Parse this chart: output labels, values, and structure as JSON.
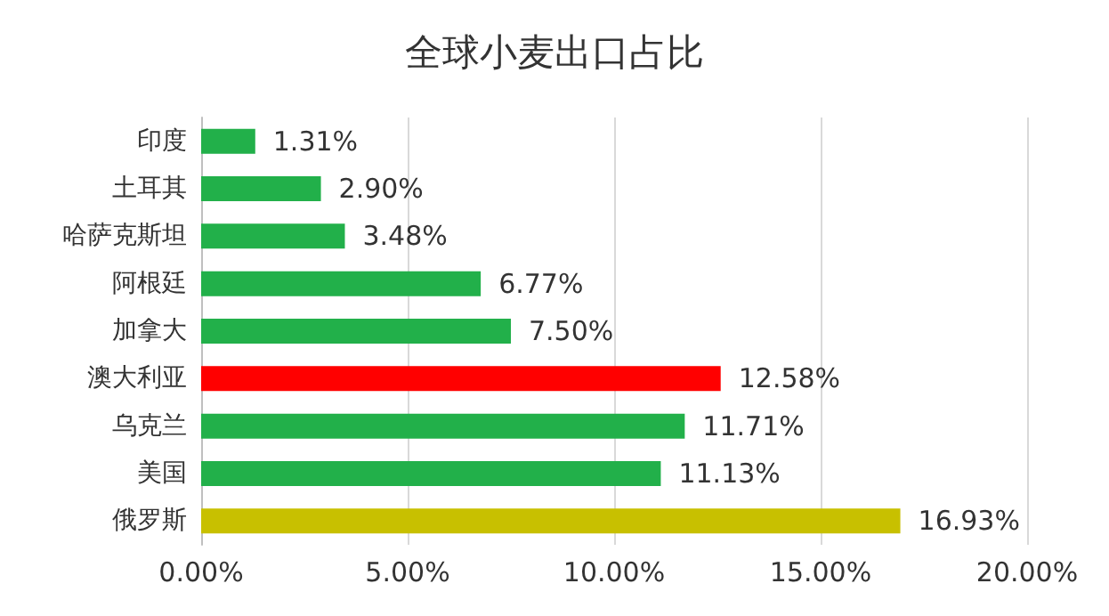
{
  "chart_data": {
    "type": "bar",
    "orientation": "horizontal",
    "title": "全球小麦出口占比",
    "categories": [
      "印度",
      "土耳其",
      "哈萨克斯坦",
      "阿根廷",
      "加拿大",
      "澳大利亚",
      "乌克兰",
      "美国",
      "俄罗斯"
    ],
    "values": [
      1.31,
      2.9,
      3.48,
      6.77,
      7.5,
      12.58,
      11.71,
      11.13,
      16.93
    ],
    "value_labels": [
      "1.31%",
      "2.90%",
      "3.48%",
      "6.77%",
      "7.50%",
      "12.58%",
      "11.71%",
      "11.13%",
      "16.93%"
    ],
    "colors": [
      "#22b04a",
      "#22b04a",
      "#22b04a",
      "#22b04a",
      "#22b04a",
      "#ff0000",
      "#22b04a",
      "#22b04a",
      "#c8c000"
    ],
    "xlim": [
      0,
      20
    ],
    "xticks": [
      {
        "value": 0,
        "label": "0.00%"
      },
      {
        "value": 5,
        "label": "5.00%"
      },
      {
        "value": 10,
        "label": "10.00%"
      },
      {
        "value": 15,
        "label": "15.00%"
      },
      {
        "value": 20,
        "label": "20.00%"
      }
    ],
    "grid": "x"
  }
}
